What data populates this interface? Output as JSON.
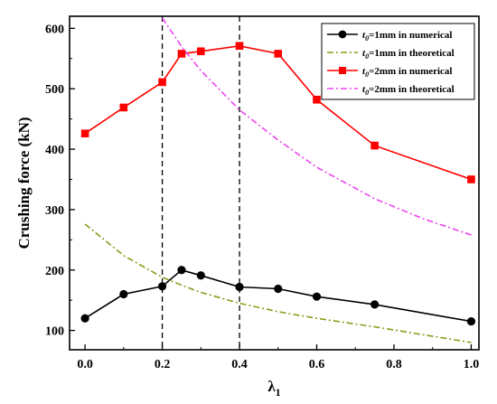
{
  "chart_data": {
    "type": "line",
    "xlabel": "λ",
    "xlabel_sub": "1",
    "ylabel": "Crushing force (kN)",
    "xlim": [
      -0.04,
      1.02
    ],
    "ylim": [
      68,
      620
    ],
    "xticks": [
      0.0,
      0.2,
      0.4,
      0.6,
      0.8,
      1.0
    ],
    "xtick_labels": [
      "0.0",
      "0.2",
      "0.4",
      "0.6",
      "0.8",
      "1.0"
    ],
    "yticks": [
      100,
      200,
      300,
      400,
      500,
      600
    ],
    "ytick_labels": [
      "100",
      "200",
      "300",
      "400",
      "500",
      "600"
    ],
    "grid": false,
    "legend_position": "top-right",
    "reference_lines_x": [
      0.2,
      0.4
    ],
    "series": [
      {
        "name": "=1mm in numerical",
        "name_prefix": "t",
        "name_sub": "0",
        "color": "#000000",
        "style": "solid",
        "marker": "circle",
        "x": [
          0.0,
          0.1,
          0.2,
          0.25,
          0.3,
          0.4,
          0.5,
          0.6,
          0.75,
          1.0
        ],
        "y": [
          120,
          160,
          173,
          200,
          191,
          172,
          169,
          156,
          143,
          115
        ]
      },
      {
        "name": "=1mm in theoretical",
        "name_prefix": "t",
        "name_sub": "0",
        "color": "#8b9b1a",
        "style": "dashdot",
        "marker": "none",
        "x": [
          0.0,
          0.1,
          0.2,
          0.25,
          0.3,
          0.4,
          0.5,
          0.6,
          0.75,
          1.0
        ],
        "y": [
          276,
          224,
          188,
          175,
          163,
          145,
          131,
          120,
          106,
          80
        ]
      },
      {
        "name": "=2mm in numerical",
        "name_prefix": "t",
        "name_sub": "0",
        "color": "#ff0000",
        "style": "solid",
        "marker": "square",
        "x": [
          0.0,
          0.1,
          0.2,
          0.25,
          0.3,
          0.4,
          0.5,
          0.6,
          0.75,
          1.0
        ],
        "y": [
          426,
          469,
          511,
          558,
          562,
          571,
          558,
          482,
          406,
          350
        ]
      },
      {
        "name": "=2mm in theoretical",
        "name_prefix": "t",
        "name_sub": "0",
        "color": "#ee44ee",
        "style": "dashdot",
        "marker": "none",
        "x": [
          0.2,
          0.25,
          0.3,
          0.4,
          0.5,
          0.6,
          0.75,
          0.875,
          1.0
        ],
        "y": [
          617,
          570,
          530,
          465,
          415,
          370,
          318,
          285,
          258
        ]
      }
    ]
  }
}
